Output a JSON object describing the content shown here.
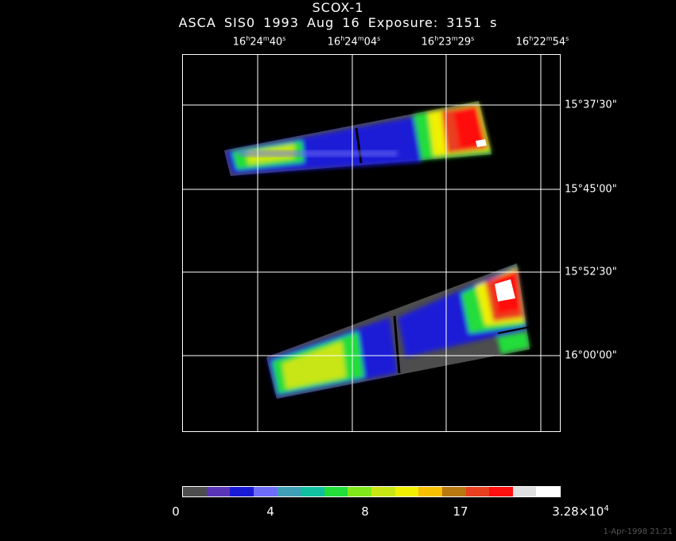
{
  "title": "SCOX-1",
  "subtitle": "ASCA SIS0   1993 Aug 16    Exposure:  3151 s",
  "ra_labels": [
    {
      "h": "16",
      "m": "24",
      "s": "40"
    },
    {
      "h": "16",
      "m": "24",
      "s": "04"
    },
    {
      "h": "16",
      "m": "23",
      "s": "29"
    },
    {
      "h": "16",
      "m": "22",
      "s": "54"
    }
  ],
  "dec_labels": [
    "15°37'30\"",
    "15°45'00\"",
    "15°52'30\"",
    "16°00'00\""
  ],
  "colorbar": {
    "colors": [
      "#4d4d4d",
      "#5a35b8",
      "#1a1ad6",
      "#6d6dfa",
      "#3f9fb5",
      "#10c0a0",
      "#22dd3a",
      "#80e81a",
      "#c8e614",
      "#f0f000",
      "#f8c000",
      "#b87810",
      "#e84020",
      "#ff1010",
      "#e0e0e0",
      "#ffffff"
    ],
    "labels": [
      "0",
      "4",
      "8",
      "17",
      "3.28×10"
    ],
    "max_exponent": "4"
  },
  "footer": "1-Apr-1998 21:21"
}
